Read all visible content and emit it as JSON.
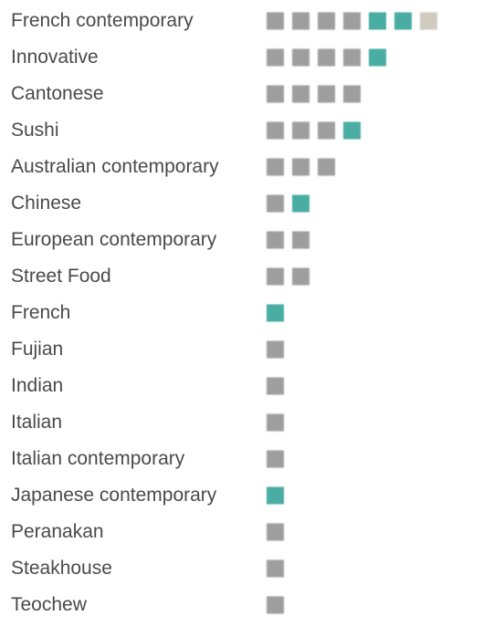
{
  "chart_data": {
    "type": "unit-square",
    "categories": [
      "French contemporary",
      "Innovative",
      "Cantonese",
      "Sushi",
      "Australian contemporary",
      "Chinese",
      "European contemporary",
      "Street Food",
      "French",
      "Fujian",
      "Indian",
      "Italian",
      "Italian contemporary",
      "Japanese contemporary",
      "Peranakan",
      "Steakhouse",
      "Teochew"
    ],
    "series": [
      {
        "values": [
          4,
          4,
          4,
          3,
          3,
          1,
          2,
          2,
          0,
          1,
          1,
          1,
          1,
          0,
          1,
          1,
          1
        ]
      },
      {
        "values": [
          2,
          1,
          0,
          1,
          0,
          1,
          0,
          0,
          1,
          0,
          0,
          0,
          0,
          1,
          0,
          0,
          0
        ]
      },
      {
        "values": [
          1,
          0,
          0,
          0,
          0,
          0,
          0,
          0,
          0,
          0,
          0,
          0,
          0,
          0,
          0,
          0,
          0
        ]
      }
    ],
    "colors": [
      "#9e9e9e",
      "#4aada3",
      "#cfcbbf"
    ],
    "grid": false,
    "legend": "none"
  }
}
